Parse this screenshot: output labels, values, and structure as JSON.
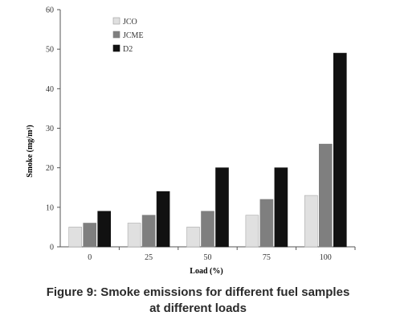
{
  "chart_data": {
    "type": "bar",
    "categories": [
      "0",
      "25",
      "50",
      "75",
      "100"
    ],
    "series": [
      {
        "name": "JCO",
        "values": [
          5,
          6,
          5,
          8,
          13
        ]
      },
      {
        "name": "JCME",
        "values": [
          6,
          8,
          9,
          12,
          26
        ]
      },
      {
        "name": "D2",
        "values": [
          9,
          14,
          20,
          20,
          49
        ]
      }
    ],
    "xlabel": "Load (%)",
    "ylabel": "Smoke (mg/m³)",
    "ylim": [
      0,
      60
    ],
    "yticks": [
      "0",
      "10",
      "20",
      "30",
      "40",
      "50",
      "60"
    ],
    "grid": false,
    "legend": "top-left",
    "colors": {
      "JCO": "#e0e0e0",
      "JCME": "#7f7f7f",
      "D2": "#111111"
    }
  },
  "caption": {
    "line1": "Figure 9: Smoke emissions for different fuel samples",
    "line2": "at different loads"
  }
}
